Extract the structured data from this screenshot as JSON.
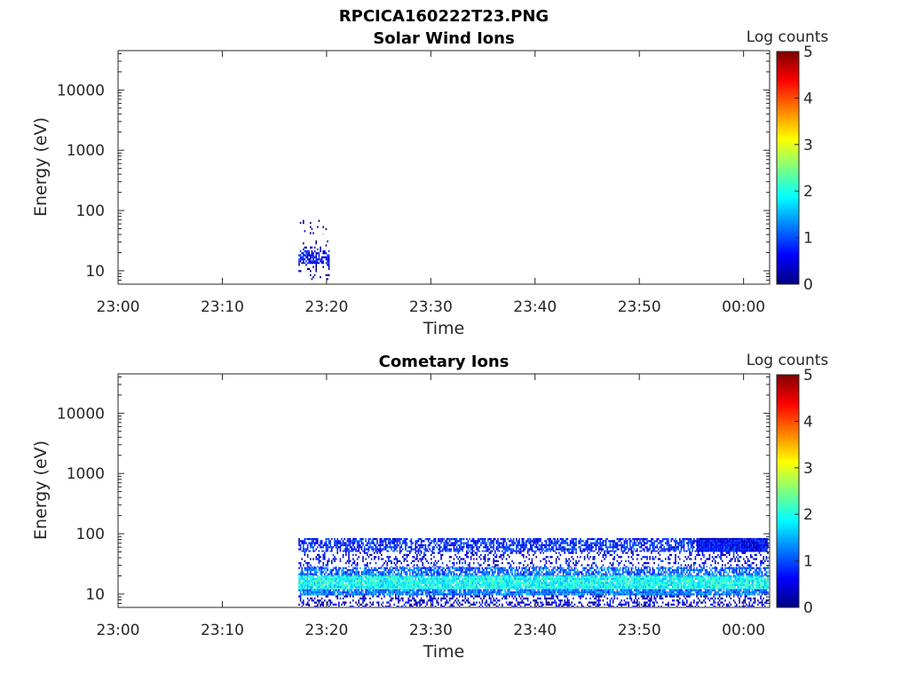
{
  "figure_title": "RPCICA160222T23.PNG",
  "colors": {
    "colormap": [
      "#00007f",
      "#0000ff",
      "#007fff",
      "#00ffff",
      "#7fff7f",
      "#ffff00",
      "#ff7f00",
      "#ff0000",
      "#7f0000"
    ]
  },
  "chart_data": [
    {
      "type": "heatmap",
      "title": "Solar Wind Ions",
      "xlabel": "Time",
      "ylabel": "Energy (eV)",
      "x_ticks": [
        "23:00",
        "23:10",
        "23:20",
        "23:30",
        "23:40",
        "23:50",
        "00:00"
      ],
      "y_ticks": [
        "10",
        "100",
        "1000",
        "10000"
      ],
      "y_scale": "log",
      "ylim": [
        6,
        45000
      ],
      "xlim_minutes": [
        0,
        62.5
      ],
      "colorbar": {
        "label": "Log counts",
        "ticks": [
          "0",
          "1",
          "2",
          "3",
          "4",
          "5"
        ],
        "range": [
          0,
          5
        ]
      },
      "grid": false,
      "bands": [
        {
          "t_start": 17.3,
          "t_end": 20.2,
          "e_low": 13,
          "e_high": 22,
          "log_counts": 0.6,
          "density": 0.75
        },
        {
          "t_start": 17.3,
          "t_end": 20.2,
          "e_low": 22,
          "e_high": 32,
          "log_counts": 0.2,
          "density": 0.15
        },
        {
          "t_start": 17.3,
          "t_end": 20.2,
          "e_low": 40,
          "e_high": 70,
          "log_counts": 0.1,
          "density": 0.08
        },
        {
          "t_start": 17.3,
          "t_end": 20.2,
          "e_low": 7,
          "e_high": 13,
          "log_counts": 0.1,
          "density": 0.15
        }
      ]
    },
    {
      "type": "heatmap",
      "title": "Cometary Ions",
      "xlabel": "Time",
      "ylabel": "Energy (eV)",
      "x_ticks": [
        "23:00",
        "23:10",
        "23:20",
        "23:30",
        "23:40",
        "23:50",
        "00:00"
      ],
      "y_ticks": [
        "10",
        "100",
        "1000",
        "10000"
      ],
      "y_scale": "log",
      "ylim": [
        6,
        45000
      ],
      "xlim_minutes": [
        0,
        62.5
      ],
      "colorbar": {
        "label": "Log counts",
        "ticks": [
          "0",
          "1",
          "2",
          "3",
          "4",
          "5"
        ],
        "range": [
          0,
          5
        ]
      },
      "grid": false,
      "bands": [
        {
          "t_start": 17.3,
          "t_end": 62.3,
          "e_low": 50,
          "e_high": 85,
          "log_counts": 0.8,
          "density": 0.65
        },
        {
          "t_start": 17.3,
          "t_end": 62.3,
          "e_low": 28,
          "e_high": 50,
          "log_counts": 0.5,
          "density": 0.25
        },
        {
          "t_start": 17.3,
          "t_end": 62.3,
          "e_low": 20,
          "e_high": 28,
          "log_counts": 1.1,
          "density": 0.7
        },
        {
          "t_start": 17.3,
          "t_end": 62.3,
          "e_low": 12,
          "e_high": 20,
          "log_counts": 1.9,
          "density": 0.95
        },
        {
          "t_start": 17.3,
          "t_end": 62.3,
          "e_low": 9.5,
          "e_high": 12,
          "log_counts": 1.2,
          "density": 0.9
        },
        {
          "t_start": 17.3,
          "t_end": 62.3,
          "e_low": 6.2,
          "e_high": 9.5,
          "log_counts": 0.4,
          "density": 0.35
        },
        {
          "t_start": 55.5,
          "t_end": 62.3,
          "e_low": 50,
          "e_high": 85,
          "log_counts": 0.6,
          "density": 1.0
        }
      ]
    }
  ]
}
